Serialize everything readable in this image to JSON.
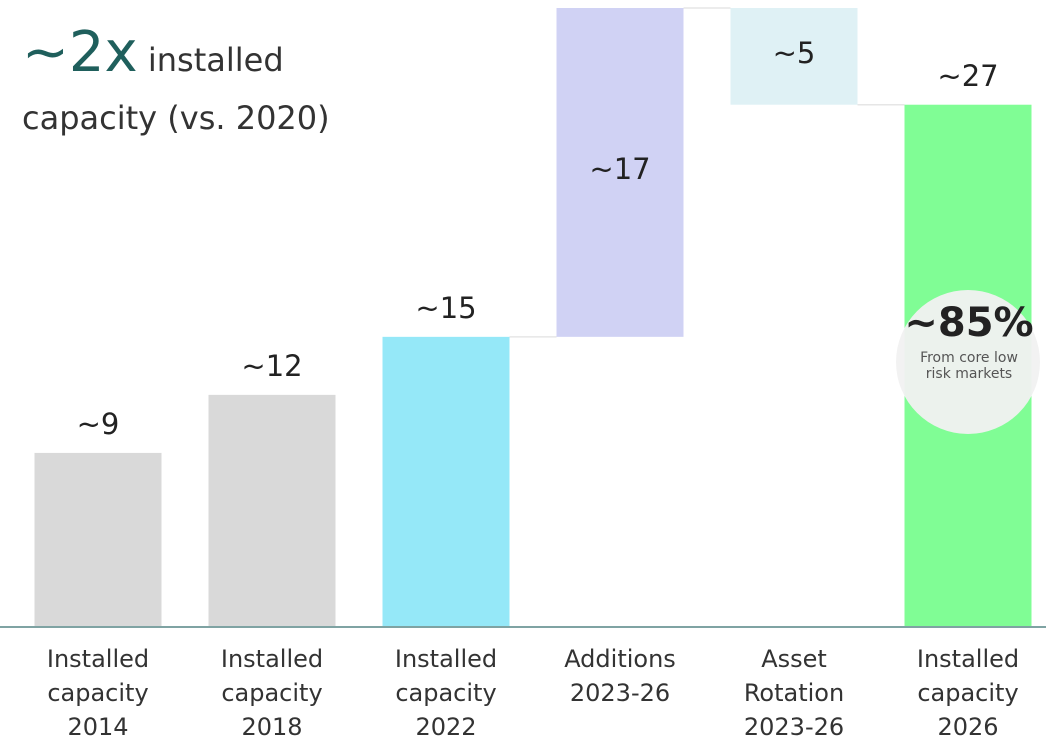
{
  "chart_data": {
    "type": "waterfall",
    "title_emphasis": "~2x",
    "title": "installed capacity (vs. 2020)",
    "categories": [
      "Installed capacity 2014",
      "Installed capacity 2018",
      "Installed capacity 2022",
      "Additions 2023-26",
      "Asset Rotation 2023-26",
      "Installed capacity 2026"
    ],
    "measures": [
      "total",
      "total",
      "total",
      "relative",
      "relative",
      "total"
    ],
    "values": [
      9,
      12,
      15,
      17,
      -5,
      27
    ],
    "value_labels": [
      "~9",
      "~12",
      "~15",
      "~17",
      "~5",
      "~27"
    ],
    "colors": [
      "#d9d9d9",
      "#d9d9d9",
      "#95e8f8",
      "#d0d2f4",
      "#dff1f5",
      "#80fd95"
    ],
    "ylim": [
      0,
      32
    ],
    "callout": {
      "value_label": "~85%",
      "text": "From core low risk markets"
    }
  }
}
